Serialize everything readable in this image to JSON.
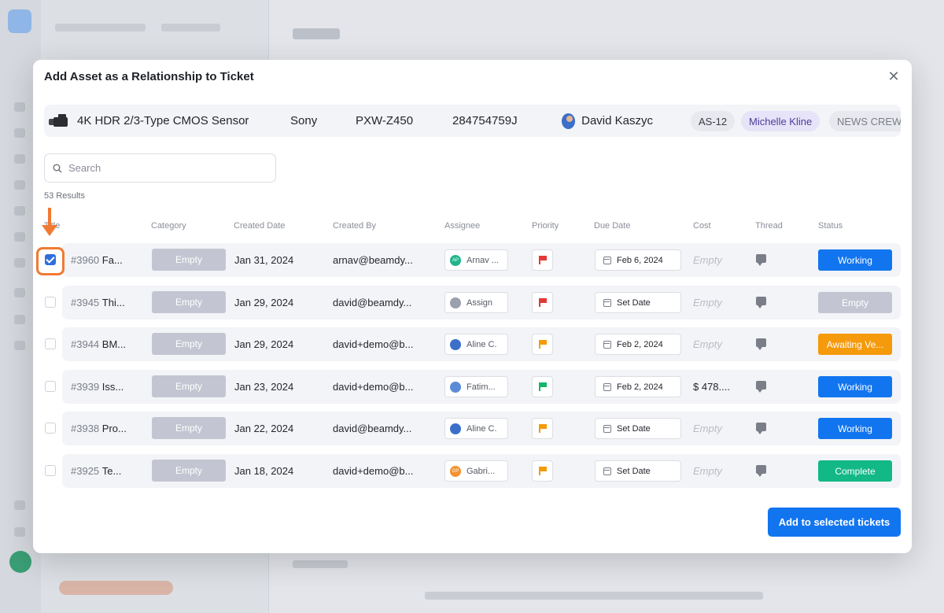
{
  "modal": {
    "title": "Add Asset as a Relationship to Ticket",
    "close_icon": "close-icon",
    "add_button_label": "Add to selected tickets"
  },
  "asset": {
    "name": "4K HDR 2/3-Type CMOS Sensor",
    "brand": "Sony",
    "model": "PXW-Z450",
    "serial": "284754759J",
    "owner": "David Kaszyc",
    "tag": "AS-12",
    "assignee": "Michelle Kline",
    "group": "NEWS CREW"
  },
  "search": {
    "placeholder": "Search",
    "results": "53 Results"
  },
  "columns": {
    "title": "Title",
    "category": "Category",
    "created_date": "Created Date",
    "created_by": "Created By",
    "assignee": "Assignee",
    "priority": "Priority",
    "due_date": "Due Date",
    "cost": "Cost",
    "thread": "Thread",
    "status": "Status"
  },
  "rows": [
    {
      "id": "#3960",
      "title": "Fa...",
      "category": "Empty",
      "created": "Jan 31, 2024",
      "by": "arnav@beamdy...",
      "assignee": "Arnav ...",
      "assignee_initials": "AP",
      "assignee_color": "#1fb58a",
      "priority_color": "#e53935",
      "due": "Feb 6, 2024",
      "cost": "Empty",
      "status": "Working",
      "status_color": "#1275f0",
      "checked": true
    },
    {
      "id": "#3945",
      "title": "Thi...",
      "category": "Empty",
      "created": "Jan 29, 2024",
      "by": "david@beamdy...",
      "assignee": "Assign",
      "assignee_initials": "",
      "assignee_color": "#9aa0ad",
      "priority_color": "#e53935",
      "due": "Set Date",
      "cost": "Empty",
      "status": "Empty",
      "status_color": "#c3c6d2",
      "checked": false
    },
    {
      "id": "#3944",
      "title": "BM...",
      "category": "Empty",
      "created": "Jan 29, 2024",
      "by": "david+demo@b...",
      "assignee": "Aline C.",
      "assignee_initials": "",
      "assignee_color": "#3b6fc9",
      "priority_color": "#f59a0b",
      "due": "Feb 2, 2024",
      "cost": "Empty",
      "status": "Awaiting Ve...",
      "status_color": "#f59a0b",
      "checked": false
    },
    {
      "id": "#3939",
      "title": "Iss...",
      "category": "Empty",
      "created": "Jan 23, 2024",
      "by": "david+demo@b...",
      "assignee": "Fatim...",
      "assignee_initials": "",
      "assignee_color": "#5b8bd6",
      "priority_color": "#12b76a",
      "due": "Feb 2, 2024",
      "cost": "$ 478....",
      "status": "Working",
      "status_color": "#1275f0",
      "checked": false
    },
    {
      "id": "#3938",
      "title": "Pro...",
      "category": "Empty",
      "created": "Jan 22, 2024",
      "by": "david@beamdy...",
      "assignee": "Aline C.",
      "assignee_initials": "",
      "assignee_color": "#3b6fc9",
      "priority_color": "#f59a0b",
      "due": "Set Date",
      "cost": "Empty",
      "status": "Working",
      "status_color": "#1275f0",
      "checked": false
    },
    {
      "id": "#3925",
      "title": "Te...",
      "category": "Empty",
      "created": "Jan 18, 2024",
      "by": "david+demo@b...",
      "assignee": "Gabri...",
      "assignee_initials": "GP",
      "assignee_color": "#f5912f",
      "priority_color": "#f59a0b",
      "due": "Set Date",
      "cost": "Empty",
      "status": "Complete",
      "status_color": "#12b886",
      "checked": false
    }
  ]
}
